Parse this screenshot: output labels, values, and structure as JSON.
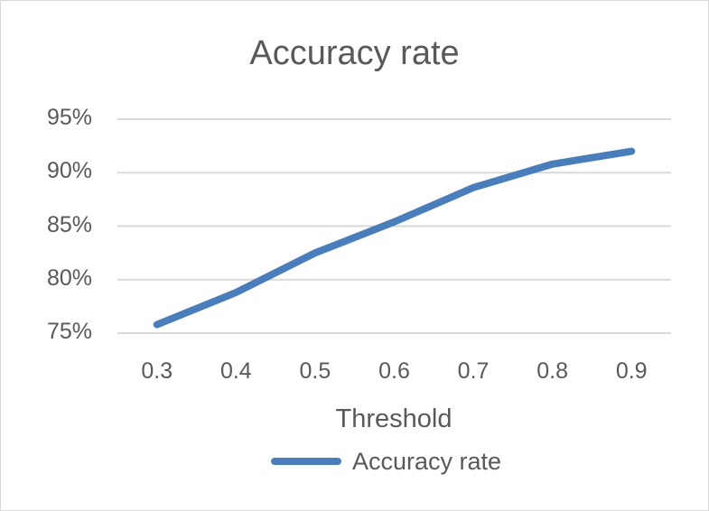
{
  "chart_data": {
    "type": "line",
    "title": "Accuracy rate",
    "xlabel": "Threshold",
    "ylabel": "",
    "categories": [
      "0.3",
      "0.4",
      "0.5",
      "0.6",
      "0.7",
      "0.8",
      "0.9"
    ],
    "series": [
      {
        "name": "Accuracy rate",
        "values": [
          75.8,
          78.8,
          82.5,
          85.4,
          88.6,
          90.8,
          92.0
        ],
        "color": "#4a7ebb"
      }
    ],
    "y_ticks": [
      "95%",
      "90%",
      "85%",
      "80%",
      "75%"
    ],
    "ylim": [
      75,
      95
    ],
    "grid": true,
    "legend_position": "bottom"
  }
}
